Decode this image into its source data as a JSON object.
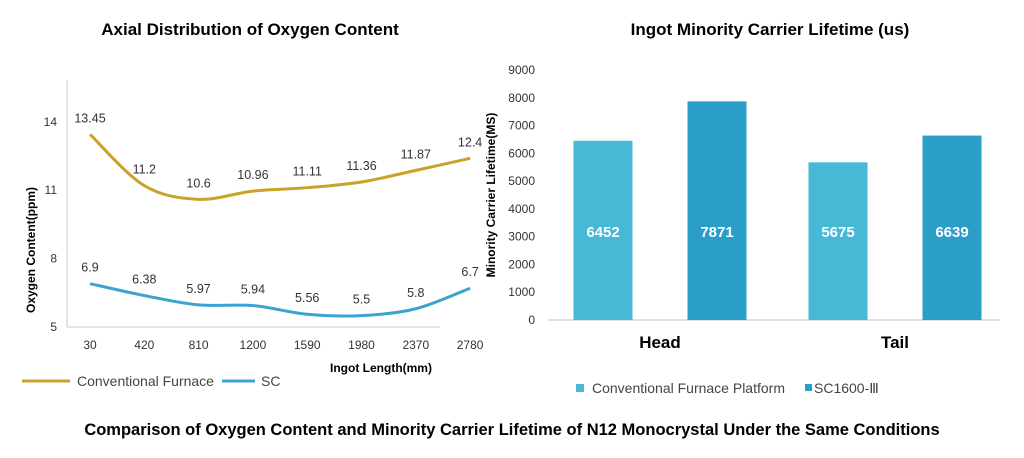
{
  "titles": {
    "left": "Axial Distribution of Oxygen Content",
    "right": "Ingot Minority Carrier Lifetime (us)",
    "caption": "Comparison of Oxygen Content and Minority Carrier Lifetime of N12 Monocrystal Under the Same Conditions"
  },
  "chart_data": [
    {
      "type": "line",
      "title": "Axial Distribution of Oxygen Content",
      "xlabel": "Ingot Length(mm)",
      "ylabel": "Oxygen Content(ppm)",
      "x": [
        30,
        420,
        810,
        1200,
        1590,
        1980,
        2370,
        2780
      ],
      "yticks": [
        5,
        8,
        11,
        14
      ],
      "ylim": [
        5,
        16
      ],
      "legend_position": "bottom-left",
      "series": [
        {
          "name": "Conventional Furnace",
          "color": "#C9A227",
          "values": [
            13.45,
            11.2,
            10.6,
            10.96,
            11.11,
            11.36,
            11.87,
            12.4
          ],
          "labels": [
            "13.45",
            "11.2",
            "10.6",
            "10.96",
            "11.11",
            "11.36",
            "11.87",
            "12.4"
          ]
        },
        {
          "name": "SC",
          "color": "#3BA3D0",
          "values": [
            6.9,
            6.38,
            5.97,
            5.94,
            5.56,
            5.5,
            5.8,
            6.7
          ],
          "labels": [
            "6.9",
            "6.38",
            "5.97",
            "5.94",
            "5.56",
            "5.5",
            "5.8",
            "6.7"
          ]
        }
      ]
    },
    {
      "type": "bar",
      "title": "Ingot Minority Carrier Lifetime (us)",
      "ylabel": "Minority Carrier Lifetime(MS)",
      "categories": [
        "Head",
        "Tail"
      ],
      "ylim": [
        0,
        9000
      ],
      "yticks": [
        0,
        1000,
        2000,
        3000,
        4000,
        5000,
        6000,
        7000,
        8000,
        9000
      ],
      "legend_position": "bottom",
      "series": [
        {
          "name": "Conventional Furnace Platform",
          "color": "#45B9D6",
          "values": [
            6452,
            5675
          ]
        },
        {
          "name": "SC1600-Ⅲ",
          "color": "#2A9DC9",
          "values": [
            7871,
            6639
          ]
        }
      ]
    }
  ]
}
